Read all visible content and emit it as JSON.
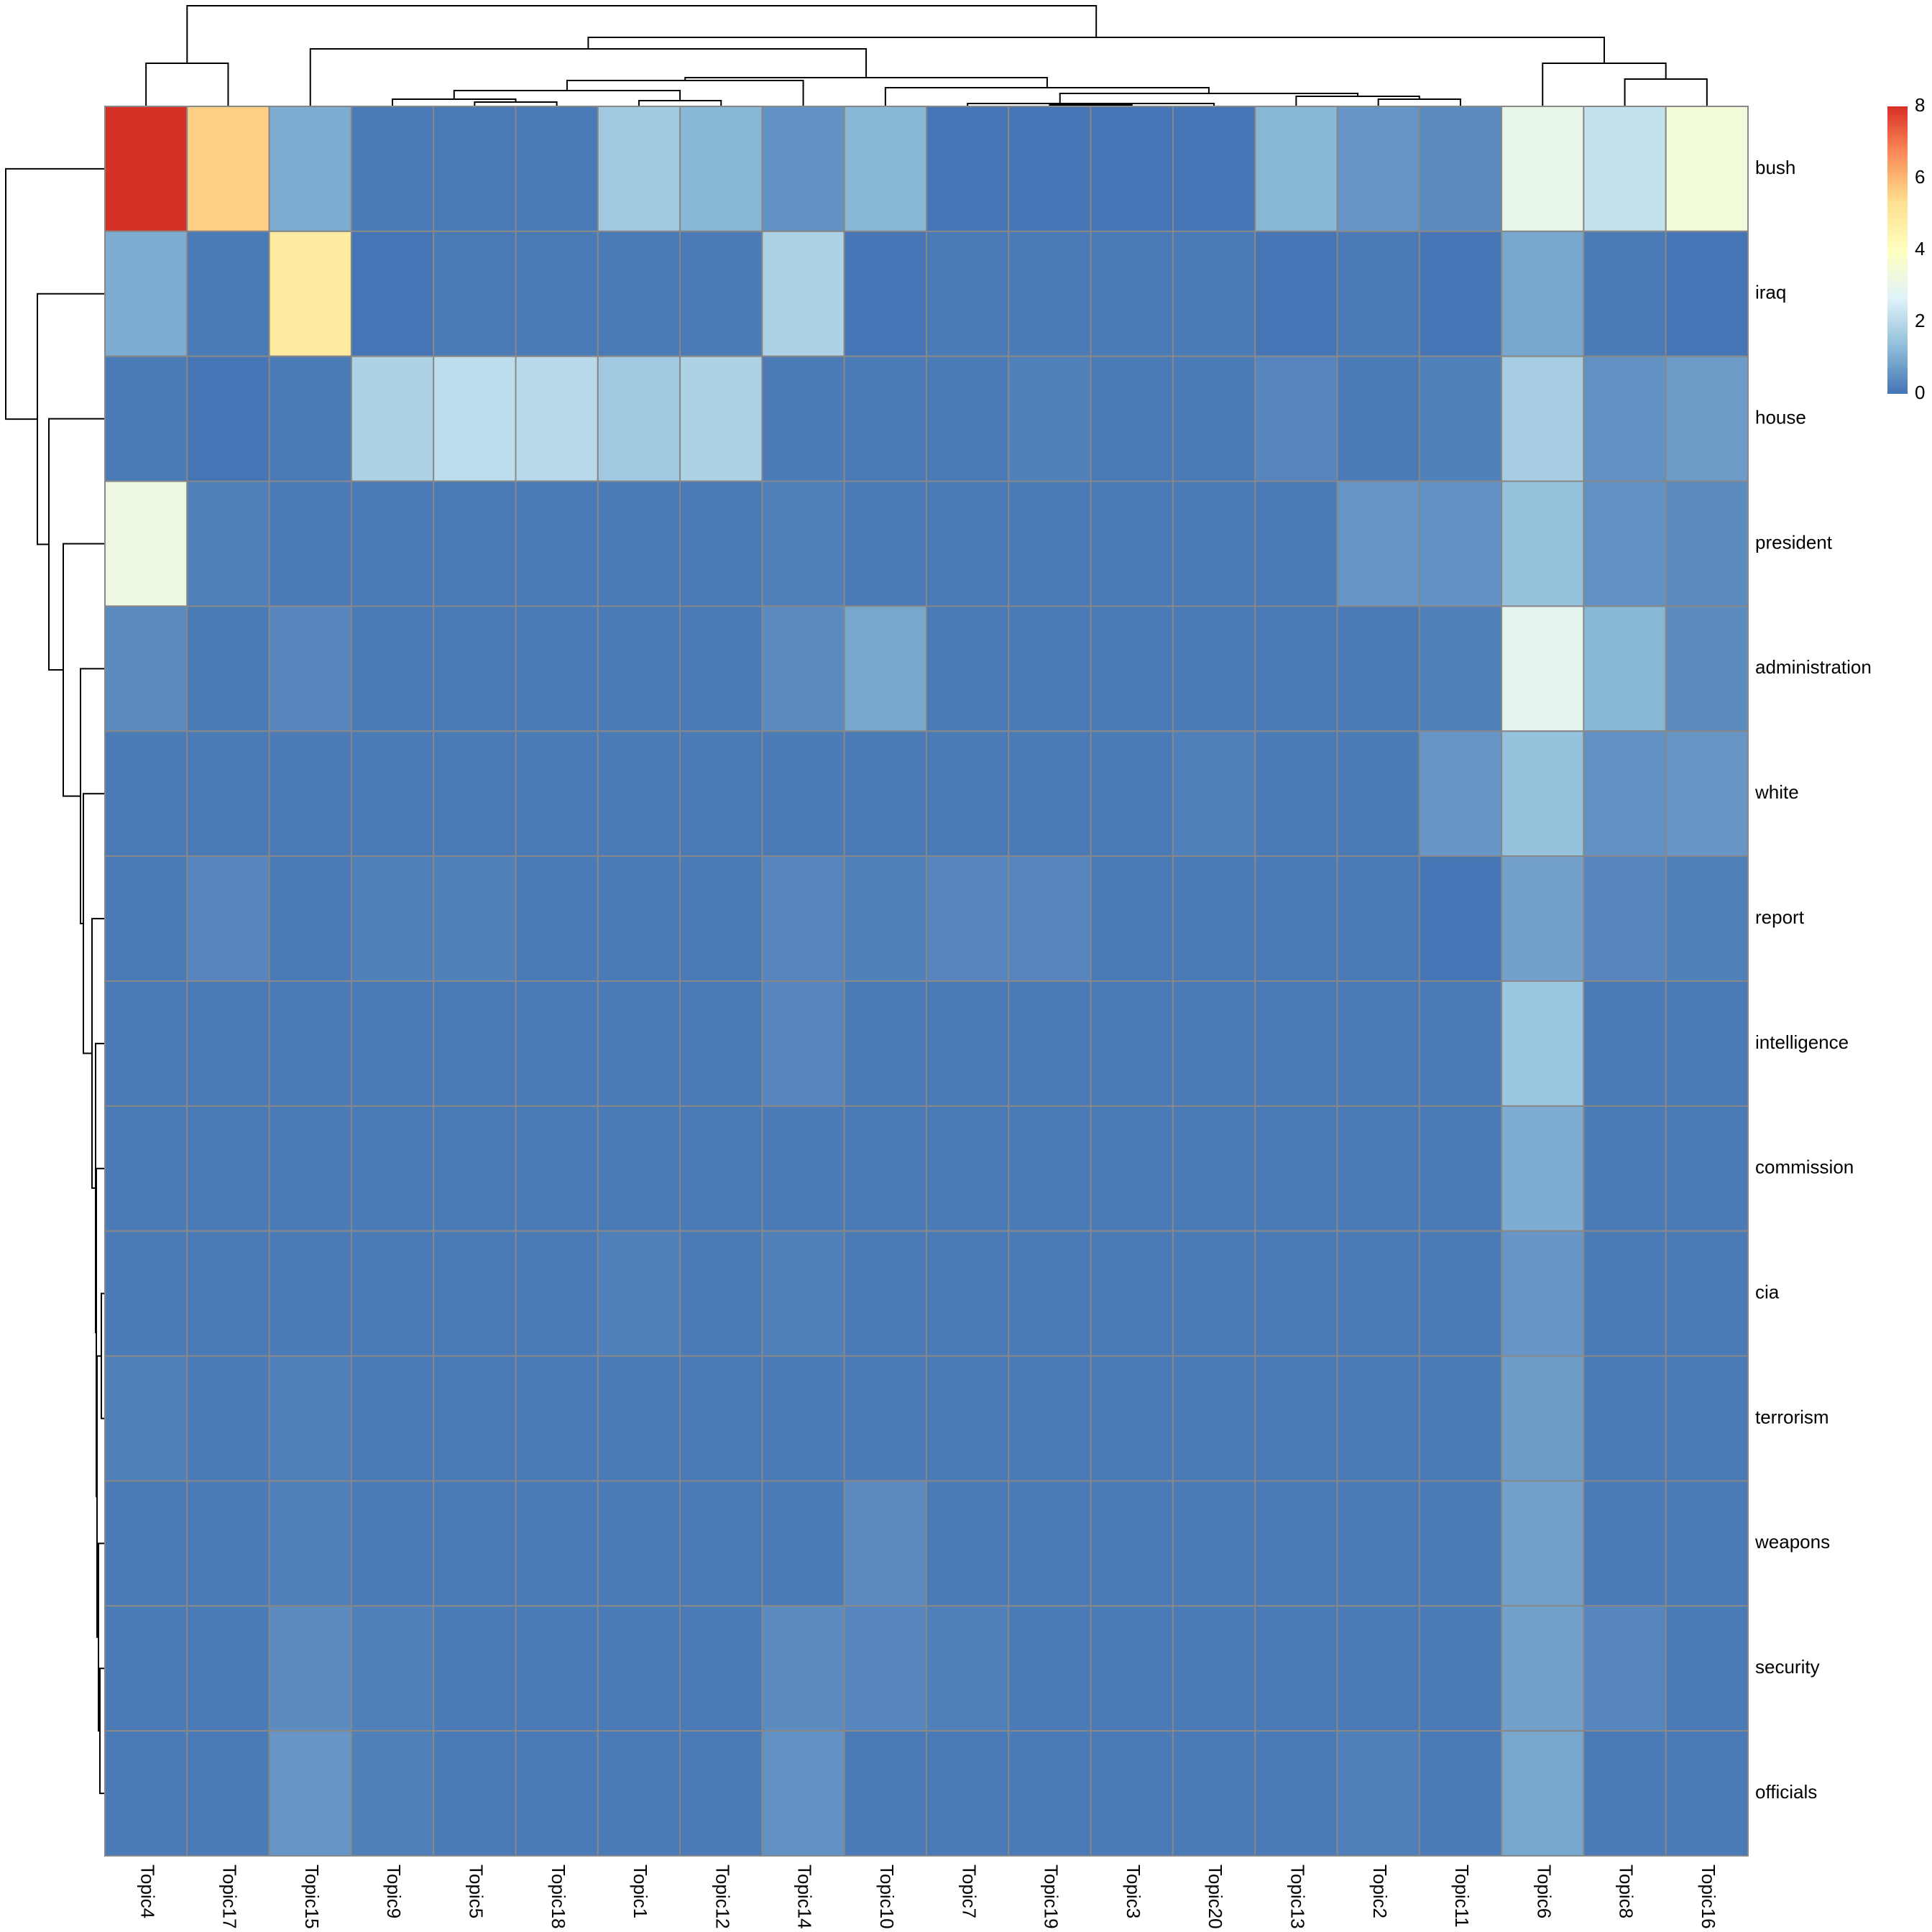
{
  "chart_data": {
    "type": "heatmap",
    "title": "",
    "xlabel": "",
    "ylabel": "",
    "columns": [
      "Topic4",
      "Topic17",
      "Topic15",
      "Topic9",
      "Topic5",
      "Topic18",
      "Topic1",
      "Topic12",
      "Topic14",
      "Topic10",
      "Topic7",
      "Topic19",
      "Topic3",
      "Topic20",
      "Topic13",
      "Topic2",
      "Topic11",
      "Topic6",
      "Topic8",
      "Topic16"
    ],
    "rows": [
      "bush",
      "iraq",
      "house",
      "president",
      "administration",
      "white",
      "report",
      "intelligence",
      "commission",
      "cia",
      "terrorism",
      "weapons",
      "security",
      "officials"
    ],
    "values": [
      [
        8.0,
        5.6,
        1.0,
        0.1,
        0.1,
        0.1,
        1.6,
        1.2,
        0.5,
        1.2,
        0.0,
        0.0,
        0.0,
        0.0,
        1.2,
        0.6,
        0.4,
        3.0,
        2.2,
        3.4
      ],
      [
        1.0,
        0.1,
        4.8,
        0.0,
        0.1,
        0.1,
        0.1,
        0.1,
        1.8,
        0.0,
        0.1,
        0.1,
        0.1,
        0.1,
        0.0,
        0.1,
        0.0,
        0.9,
        0.1,
        0.0
      ],
      [
        0.1,
        0.0,
        0.1,
        1.8,
        2.1,
        2.0,
        1.6,
        1.8,
        0.1,
        0.1,
        0.1,
        0.2,
        0.1,
        0.1,
        0.3,
        0.1,
        0.2,
        1.7,
        0.5,
        0.7
      ],
      [
        3.2,
        0.2,
        0.1,
        0.1,
        0.1,
        0.1,
        0.1,
        0.1,
        0.2,
        0.1,
        0.1,
        0.1,
        0.1,
        0.1,
        0.1,
        0.6,
        0.5,
        1.4,
        0.5,
        0.4
      ],
      [
        0.4,
        0.1,
        0.3,
        0.1,
        0.1,
        0.1,
        0.1,
        0.1,
        0.4,
        0.9,
        0.1,
        0.1,
        0.1,
        0.1,
        0.1,
        0.1,
        0.2,
        2.9,
        1.2,
        0.4
      ],
      [
        0.1,
        0.1,
        0.1,
        0.1,
        0.1,
        0.1,
        0.1,
        0.1,
        0.1,
        0.1,
        0.1,
        0.1,
        0.1,
        0.2,
        0.1,
        0.1,
        0.6,
        1.4,
        0.5,
        0.6
      ],
      [
        0.1,
        0.3,
        0.1,
        0.2,
        0.2,
        0.1,
        0.1,
        0.1,
        0.3,
        0.2,
        0.3,
        0.3,
        0.1,
        0.1,
        0.1,
        0.1,
        0.0,
        0.8,
        0.3,
        0.2
      ],
      [
        0.1,
        0.1,
        0.1,
        0.1,
        0.1,
        0.1,
        0.1,
        0.1,
        0.3,
        0.1,
        0.1,
        0.1,
        0.1,
        0.1,
        0.1,
        0.1,
        0.1,
        1.5,
        0.1,
        0.1
      ],
      [
        0.1,
        0.1,
        0.1,
        0.1,
        0.1,
        0.1,
        0.1,
        0.1,
        0.1,
        0.1,
        0.1,
        0.1,
        0.1,
        0.1,
        0.1,
        0.1,
        0.1,
        1.0,
        0.1,
        0.1
      ],
      [
        0.1,
        0.1,
        0.1,
        0.1,
        0.1,
        0.1,
        0.2,
        0.1,
        0.2,
        0.1,
        0.1,
        0.1,
        0.1,
        0.1,
        0.1,
        0.1,
        0.1,
        0.6,
        0.1,
        0.1
      ],
      [
        0.2,
        0.1,
        0.2,
        0.1,
        0.1,
        0.1,
        0.1,
        0.1,
        0.1,
        0.1,
        0.1,
        0.1,
        0.1,
        0.1,
        0.1,
        0.1,
        0.1,
        0.7,
        0.1,
        0.1
      ],
      [
        0.1,
        0.1,
        0.2,
        0.1,
        0.1,
        0.1,
        0.1,
        0.1,
        0.1,
        0.4,
        0.1,
        0.1,
        0.1,
        0.1,
        0.1,
        0.1,
        0.1,
        0.8,
        0.1,
        0.1
      ],
      [
        0.1,
        0.1,
        0.4,
        0.2,
        0.1,
        0.1,
        0.1,
        0.1,
        0.4,
        0.3,
        0.2,
        0.1,
        0.1,
        0.1,
        0.1,
        0.1,
        0.1,
        0.8,
        0.3,
        0.1
      ],
      [
        0.1,
        0.1,
        0.6,
        0.2,
        0.1,
        0.1,
        0.1,
        0.1,
        0.5,
        0.1,
        0.1,
        0.1,
        0.1,
        0.1,
        0.1,
        0.2,
        0.1,
        0.9,
        0.1,
        0.1
      ]
    ],
    "value_range": [
      0,
      8
    ],
    "colorbar_ticks": [
      "0",
      "2",
      "4",
      "6",
      "8"
    ],
    "colormap": [
      "#4575b4",
      "#91bfdb",
      "#e0f3f8",
      "#ffffbf",
      "#fee090",
      "#fc8d59",
      "#d73027"
    ],
    "cell_border_color": "#888888",
    "legend_placement": "top-right",
    "column_dendrogram": true,
    "row_dendrogram": true
  }
}
